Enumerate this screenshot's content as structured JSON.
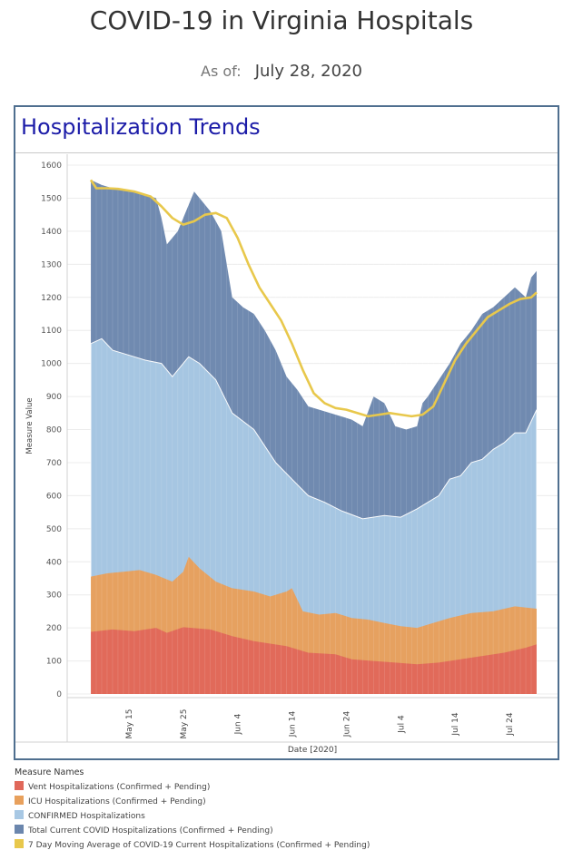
{
  "page": {
    "title": "COVID-19 in Virginia Hospitals",
    "as_of_label": "As of:",
    "as_of_date": "July 28, 2020"
  },
  "panel": {
    "title": "Hospitalization Trends"
  },
  "legend": {
    "title": "Measure Names",
    "items": [
      {
        "label": "Vent Hospitalizations (Confirmed + Pending)",
        "color": "#e0685a"
      },
      {
        "label": "ICU Hospitalizations (Confirmed + Pending)",
        "color": "#e8a05c"
      },
      {
        "label": "CONFIRMED Hospitalizations",
        "color": "#a8c8e4"
      },
      {
        "label": "Total Current COVID Hospitalizations (Confirmed + Pending)",
        "color": "#6b86ad"
      },
      {
        "label": "7 Day Moving Average of COVID-19 Current Hospitalizations (Confirmed + Pending)",
        "color": "#e8c84c"
      }
    ]
  },
  "chart_data": {
    "type": "area",
    "xlabel": "Date [2020]",
    "ylabel": "Measure Value",
    "ylim": [
      0,
      1600
    ],
    "yticks": [
      0,
      100,
      200,
      300,
      400,
      500,
      600,
      700,
      800,
      900,
      1000,
      1100,
      1200,
      1300,
      1400,
      1500,
      1600
    ],
    "x_start": "May 8",
    "x_end": "Jul 28",
    "xticks": [
      {
        "label": "May 15",
        "day": 7
      },
      {
        "label": "May 25",
        "day": 17
      },
      {
        "label": "Jun 4",
        "day": 27
      },
      {
        "label": "Jun 14",
        "day": 37
      },
      {
        "label": "Jun 24",
        "day": 47
      },
      {
        "label": "Jul 4",
        "day": 57
      },
      {
        "label": "Jul 14",
        "day": 67
      },
      {
        "label": "Jul 24",
        "day": 77
      }
    ],
    "grid": true,
    "series": [
      {
        "name": "Vent Hospitalizations (Confirmed + Pending)",
        "color": "#e0685a",
        "points": [
          [
            0,
            188
          ],
          [
            4,
            195
          ],
          [
            8,
            190
          ],
          [
            12,
            200
          ],
          [
            14,
            185
          ],
          [
            17,
            202
          ],
          [
            22,
            195
          ],
          [
            26,
            175
          ],
          [
            30,
            160
          ],
          [
            36,
            145
          ],
          [
            40,
            125
          ],
          [
            45,
            120
          ],
          [
            48,
            105
          ],
          [
            52,
            100
          ],
          [
            56,
            95
          ],
          [
            60,
            90
          ],
          [
            64,
            95
          ],
          [
            68,
            105
          ],
          [
            72,
            115
          ],
          [
            76,
            125
          ],
          [
            80,
            140
          ],
          [
            82,
            150
          ]
        ]
      },
      {
        "name": "ICU Hospitalizations (Confirmed + Pending)",
        "color": "#e8a05c",
        "points": [
          [
            0,
            355
          ],
          [
            3,
            365
          ],
          [
            6,
            370
          ],
          [
            9,
            375
          ],
          [
            12,
            360
          ],
          [
            15,
            340
          ],
          [
            17,
            370
          ],
          [
            18,
            415
          ],
          [
            20,
            380
          ],
          [
            23,
            340
          ],
          [
            26,
            320
          ],
          [
            30,
            310
          ],
          [
            33,
            295
          ],
          [
            36,
            310
          ],
          [
            37,
            320
          ],
          [
            39,
            250
          ],
          [
            42,
            240
          ],
          [
            45,
            245
          ],
          [
            48,
            230
          ],
          [
            51,
            225
          ],
          [
            54,
            215
          ],
          [
            57,
            205
          ],
          [
            60,
            200
          ],
          [
            62,
            210
          ],
          [
            66,
            230
          ],
          [
            70,
            245
          ],
          [
            74,
            250
          ],
          [
            78,
            265
          ],
          [
            82,
            258
          ]
        ]
      },
      {
        "name": "CONFIRMED Hospitalizations",
        "color": "#a8c8e4",
        "points": [
          [
            0,
            1060
          ],
          [
            2,
            1075
          ],
          [
            4,
            1040
          ],
          [
            8,
            1020
          ],
          [
            10,
            1010
          ],
          [
            13,
            1000
          ],
          [
            15,
            960
          ],
          [
            17,
            1000
          ],
          [
            18,
            1020
          ],
          [
            20,
            1000
          ],
          [
            23,
            950
          ],
          [
            26,
            850
          ],
          [
            30,
            800
          ],
          [
            34,
            700
          ],
          [
            37,
            650
          ],
          [
            40,
            600
          ],
          [
            43,
            580
          ],
          [
            46,
            555
          ],
          [
            50,
            530
          ],
          [
            54,
            540
          ],
          [
            57,
            535
          ],
          [
            60,
            560
          ],
          [
            62,
            580
          ],
          [
            64,
            600
          ],
          [
            66,
            650
          ],
          [
            68,
            660
          ],
          [
            70,
            700
          ],
          [
            72,
            710
          ],
          [
            74,
            740
          ],
          [
            76,
            760
          ],
          [
            78,
            790
          ],
          [
            80,
            790
          ],
          [
            82,
            860
          ]
        ]
      },
      {
        "name": "Total Current COVID Hospitalizations (Confirmed + Pending)",
        "color": "#6b86ad",
        "points": [
          [
            0,
            1555
          ],
          [
            2,
            1540
          ],
          [
            4,
            1530
          ],
          [
            6,
            1525
          ],
          [
            8,
            1520
          ],
          [
            10,
            1510
          ],
          [
            12,
            1500
          ],
          [
            13,
            1440
          ],
          [
            14,
            1360
          ],
          [
            16,
            1400
          ],
          [
            18,
            1480
          ],
          [
            19,
            1520
          ],
          [
            20,
            1500
          ],
          [
            22,
            1460
          ],
          [
            24,
            1400
          ],
          [
            26,
            1200
          ],
          [
            28,
            1170
          ],
          [
            30,
            1150
          ],
          [
            32,
            1100
          ],
          [
            34,
            1040
          ],
          [
            36,
            960
          ],
          [
            38,
            920
          ],
          [
            40,
            870
          ],
          [
            42,
            860
          ],
          [
            44,
            850
          ],
          [
            46,
            840
          ],
          [
            48,
            830
          ],
          [
            50,
            810
          ],
          [
            52,
            900
          ],
          [
            54,
            880
          ],
          [
            56,
            810
          ],
          [
            58,
            800
          ],
          [
            60,
            810
          ],
          [
            61,
            880
          ],
          [
            62,
            900
          ],
          [
            64,
            950
          ],
          [
            66,
            1000
          ],
          [
            68,
            1060
          ],
          [
            70,
            1100
          ],
          [
            72,
            1150
          ],
          [
            74,
            1170
          ],
          [
            76,
            1200
          ],
          [
            78,
            1230
          ],
          [
            80,
            1200
          ],
          [
            81,
            1260
          ],
          [
            82,
            1280
          ]
        ]
      },
      {
        "name": "7 Day Moving Average of COVID-19 Current Hospitalizations (Confirmed + Pending)",
        "color": "#e8c84c",
        "points": [
          [
            0,
            1555
          ],
          [
            1,
            1530
          ],
          [
            3,
            1530
          ],
          [
            5,
            1528
          ],
          [
            8,
            1520
          ],
          [
            11,
            1505
          ],
          [
            13,
            1475
          ],
          [
            15,
            1440
          ],
          [
            17,
            1420
          ],
          [
            19,
            1430
          ],
          [
            21,
            1450
          ],
          [
            23,
            1455
          ],
          [
            25,
            1440
          ],
          [
            27,
            1380
          ],
          [
            29,
            1300
          ],
          [
            31,
            1230
          ],
          [
            33,
            1180
          ],
          [
            35,
            1130
          ],
          [
            37,
            1060
          ],
          [
            39,
            980
          ],
          [
            41,
            910
          ],
          [
            43,
            880
          ],
          [
            45,
            865
          ],
          [
            47,
            860
          ],
          [
            49,
            850
          ],
          [
            51,
            840
          ],
          [
            53,
            845
          ],
          [
            55,
            850
          ],
          [
            57,
            845
          ],
          [
            59,
            840
          ],
          [
            61,
            845
          ],
          [
            63,
            870
          ],
          [
            65,
            940
          ],
          [
            67,
            1010
          ],
          [
            69,
            1060
          ],
          [
            71,
            1100
          ],
          [
            73,
            1140
          ],
          [
            75,
            1160
          ],
          [
            77,
            1180
          ],
          [
            79,
            1195
          ],
          [
            81,
            1200
          ],
          [
            82,
            1215
          ]
        ]
      }
    ]
  }
}
